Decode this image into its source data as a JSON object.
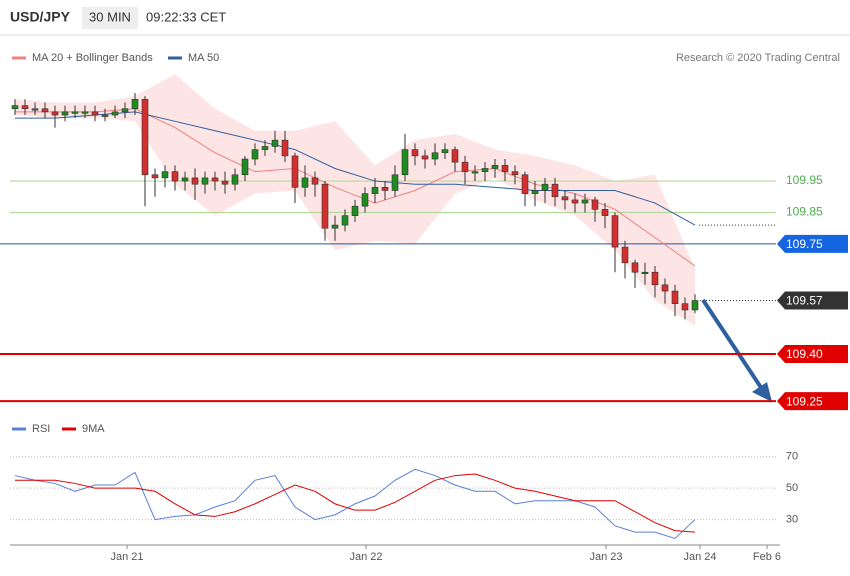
{
  "header": {
    "symbol": "USD/JPY",
    "interval": "30 MIN",
    "time": "09:22:33 CET"
  },
  "chart_data": {
    "type": "candlestick",
    "credit": "Research © 2020 Trading Central",
    "ylim": [
      109.19,
      110.335
    ],
    "open": [
      110.18,
      110.19,
      110.18,
      110.18,
      110.17,
      110.16,
      110.17,
      110.17,
      110.17,
      110.16,
      110.16,
      110.17,
      110.18,
      110.21,
      109.97,
      109.96,
      109.98,
      109.95,
      109.96,
      109.94,
      109.96,
      109.95,
      109.94,
      109.97,
      110.02,
      110.05,
      110.06,
      110.08,
      110.03,
      109.93,
      109.96,
      109.94,
      109.8,
      109.81,
      109.84,
      109.87,
      109.91,
      109.93,
      109.92,
      109.97,
      110.05,
      110.03,
      110.02,
      110.04,
      110.05,
      110.01,
      109.98,
      109.98,
      109.99,
      110.0,
      109.98,
      109.97,
      109.91,
      109.92,
      109.94,
      109.9,
      109.89,
      109.88,
      109.89,
      109.86,
      109.84,
      109.74,
      109.69,
      109.66,
      109.66,
      109.62,
      109.6,
      109.56,
      109.54
    ],
    "high": [
      110.21,
      110.21,
      110.2,
      110.2,
      110.19,
      110.19,
      110.19,
      110.19,
      110.19,
      110.18,
      110.19,
      110.2,
      110.23,
      110.22,
      109.99,
      110.0,
      110.0,
      109.98,
      109.99,
      109.98,
      109.98,
      109.98,
      109.99,
      110.03,
      110.07,
      110.08,
      110.11,
      110.11,
      110.04,
      110.0,
      109.98,
      109.95,
      109.84,
      109.86,
      109.89,
      109.93,
      109.96,
      109.95,
      110.0,
      110.1,
      110.07,
      110.05,
      110.07,
      110.07,
      110.06,
      110.03,
      110.0,
      110.01,
      110.02,
      110.02,
      110.0,
      109.98,
      109.95,
      109.96,
      109.96,
      109.92,
      109.91,
      109.91,
      109.9,
      109.88,
      109.85,
      109.76,
      109.7,
      109.69,
      109.68,
      109.64,
      109.62,
      109.58,
      109.59
    ],
    "low": [
      110.16,
      110.16,
      110.16,
      110.15,
      110.12,
      110.14,
      110.15,
      110.15,
      110.14,
      110.14,
      110.15,
      110.15,
      110.16,
      109.87,
      109.9,
      109.93,
      109.92,
      109.92,
      109.89,
      109.91,
      109.92,
      109.91,
      109.92,
      109.95,
      110.0,
      110.03,
      110.04,
      110.01,
      109.88,
      109.9,
      109.9,
      109.76,
      109.76,
      109.79,
      109.82,
      109.85,
      109.88,
      109.89,
      109.9,
      109.95,
      110.0,
      109.99,
      110.0,
      110.02,
      109.98,
      109.94,
      109.95,
      109.95,
      109.96,
      109.95,
      109.94,
      109.87,
      109.87,
      109.88,
      109.87,
      109.86,
      109.85,
      109.85,
      109.82,
      109.8,
      109.66,
      109.64,
      109.61,
      109.62,
      109.58,
      109.56,
      109.52,
      109.51,
      109.53
    ],
    "close": [
      110.19,
      110.18,
      110.18,
      110.17,
      110.16,
      110.17,
      110.17,
      110.17,
      110.16,
      110.16,
      110.17,
      110.18,
      110.21,
      109.97,
      109.96,
      109.98,
      109.95,
      109.96,
      109.94,
      109.96,
      109.95,
      109.94,
      109.97,
      110.02,
      110.05,
      110.06,
      110.08,
      110.03,
      109.93,
      109.96,
      109.94,
      109.8,
      109.81,
      109.84,
      109.87,
      109.91,
      109.93,
      109.92,
      109.97,
      110.05,
      110.03,
      110.02,
      110.04,
      110.05,
      110.01,
      109.98,
      109.98,
      109.99,
      110.0,
      109.98,
      109.97,
      109.91,
      109.92,
      109.94,
      109.9,
      109.89,
      109.88,
      109.89,
      109.86,
      109.84,
      109.74,
      109.69,
      109.66,
      109.66,
      109.62,
      109.6,
      109.56,
      109.54,
      109.57
    ],
    "up_color": "#1e8c1e",
    "down_color": "#d32f2f",
    "overlays": [
      {
        "name": "MA 20 + Bollinger Bands",
        "color": "#f08080",
        "band_color": "#fde0e0",
        "x": [
          0,
          4,
          8,
          12,
          16,
          20,
          24,
          28,
          32,
          36,
          40,
          44,
          48,
          52,
          56,
          60,
          64,
          68
        ],
        "values": [
          110.17,
          110.17,
          110.17,
          110.18,
          110.12,
          110.04,
          109.98,
          109.99,
          109.93,
          109.88,
          109.92,
          109.98,
          109.99,
          109.94,
          109.91,
          109.86,
          109.77,
          109.68
        ],
        "upper": [
          110.21,
          110.2,
          110.2,
          110.22,
          110.29,
          110.18,
          110.11,
          110.11,
          110.14,
          110.0,
          110.08,
          110.1,
          110.05,
          110.03,
          110.0,
          109.95,
          109.97,
          109.67
        ],
        "lower": [
          110.16,
          110.15,
          110.15,
          110.14,
          109.94,
          109.84,
          109.91,
          109.92,
          109.73,
          109.76,
          109.75,
          109.91,
          109.96,
          109.89,
          109.84,
          109.73,
          109.57,
          109.49
        ]
      },
      {
        "name": "MA 50",
        "color": "#2f5f9e",
        "x": [
          0,
          4,
          8,
          12,
          16,
          20,
          24,
          28,
          32,
          36,
          40,
          44,
          48,
          52,
          56,
          60,
          64,
          68
        ],
        "values": [
          110.15,
          110.15,
          110.16,
          110.17,
          110.14,
          110.11,
          110.08,
          110.05,
          109.99,
          109.95,
          109.94,
          109.94,
          109.93,
          109.92,
          109.92,
          109.92,
          109.88,
          109.81
        ]
      }
    ],
    "levels": [
      {
        "value": 109.95,
        "label": "109.95",
        "color": "#4caf50",
        "line": "green",
        "box": false
      },
      {
        "value": 109.85,
        "label": "109.85",
        "color": "#4caf50",
        "line": "green",
        "box": false
      },
      {
        "value": 109.75,
        "label": "109.75",
        "color": "#1565e0",
        "line": "thin",
        "box": true
      },
      {
        "value": 109.57,
        "label": "109.57",
        "color": "#333333",
        "line": "dotted",
        "box": true
      },
      {
        "value": 109.4,
        "label": "109.40",
        "color": "#e00000",
        "line": "thick",
        "box": true
      },
      {
        "value": 109.25,
        "label": "109.25",
        "color": "#e00000",
        "line": "thick",
        "box": true
      }
    ],
    "x_labels": [
      "Jan 21",
      "Jan 22",
      "Jan 23",
      "Jan 24",
      "Feb 6"
    ]
  },
  "rsi": {
    "ylim": [
      17,
      80
    ],
    "yticks": [
      70,
      50,
      30
    ],
    "x": [
      0,
      2,
      4,
      6,
      8,
      10,
      12,
      14,
      16,
      18,
      20,
      22,
      24,
      26,
      28,
      30,
      32,
      34,
      36,
      38,
      40,
      42,
      44,
      46,
      48,
      50,
      52,
      54,
      56,
      58,
      60,
      62,
      64,
      66,
      68
    ],
    "series": [
      {
        "name": "RSI",
        "color": "#5b7fd6",
        "values": [
          58,
          55,
          53,
          48,
          52,
          52,
          60,
          30,
          32,
          33,
          38,
          42,
          55,
          58,
          38,
          30,
          33,
          40,
          45,
          55,
          62,
          58,
          52,
          48,
          48,
          40,
          42,
          42,
          42,
          38,
          26,
          22,
          22,
          18,
          30
        ]
      },
      {
        "name": "9MA",
        "color": "#e00000",
        "values": [
          55,
          55,
          55,
          53,
          50,
          50,
          50,
          48,
          40,
          33,
          32,
          35,
          40,
          46,
          52,
          48,
          40,
          36,
          36,
          41,
          48,
          55,
          58,
          59,
          55,
          50,
          48,
          45,
          42,
          42,
          42,
          35,
          28,
          23,
          22
        ]
      }
    ]
  }
}
